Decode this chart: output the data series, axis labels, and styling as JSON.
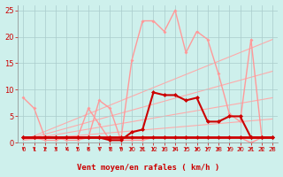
{
  "xlabel": "Vent moyen/en rafales ( km/h )",
  "xlim": [
    -0.5,
    23.5
  ],
  "ylim": [
    0,
    26
  ],
  "yticks": [
    0,
    5,
    10,
    15,
    20,
    25
  ],
  "xticks": [
    0,
    1,
    2,
    3,
    4,
    5,
    6,
    7,
    8,
    9,
    10,
    11,
    12,
    13,
    14,
    15,
    16,
    17,
    18,
    19,
    20,
    21,
    22,
    23
  ],
  "bg_color": "#cef0ec",
  "grid_color": "#aacccc",
  "x": [
    0,
    1,
    2,
    3,
    4,
    5,
    6,
    7,
    8,
    9,
    10,
    11,
    12,
    13,
    14,
    15,
    16,
    17,
    18,
    19,
    20,
    21,
    22,
    23
  ],
  "flat_line_y": [
    1,
    1,
    1,
    1,
    1,
    1,
    1,
    1,
    1,
    1,
    1,
    1,
    1,
    1,
    1,
    1,
    1,
    1,
    1,
    1,
    1,
    1,
    1,
    1
  ],
  "flat_color": "#cc0000",
  "flat_lw": 2.0,
  "flat_ms": 2.5,
  "vent_moy_y": [
    1,
    1,
    1,
    1,
    1,
    1,
    1,
    1,
    0.5,
    0.5,
    2,
    2.5,
    9.5,
    9,
    9,
    8,
    8.5,
    4,
    4,
    5,
    5,
    1,
    1,
    1
  ],
  "vent_color": "#cc0000",
  "vent_lw": 1.5,
  "vent_ms": 2.5,
  "rafales_low_y": [
    8.5,
    6.5,
    1,
    1,
    0.5,
    0.5,
    1,
    8,
    6.5,
    0.5,
    0.5,
    0.5,
    1,
    1,
    1,
    1,
    1,
    1,
    1,
    1,
    1,
    0,
    1,
    1
  ],
  "rafales_low_color": "#ff9999",
  "rafales_low_lw": 1.0,
  "rafales_low_ms": 2.0,
  "rafales_high_y": [
    1,
    1,
    0.5,
    0.5,
    1,
    1,
    6.5,
    3.5,
    0.5,
    0.5,
    15.5,
    23,
    23,
    21,
    25,
    17,
    21,
    19.5,
    13,
    5.5,
    4,
    19.5,
    1,
    1
  ],
  "rafales_high_color": "#ff9999",
  "rafales_high_lw": 1.0,
  "rafales_high_ms": 2.0,
  "trend_lines": [
    {
      "x": [
        0,
        23
      ],
      "y": [
        0.5,
        4.5
      ],
      "color": "#ffaaaa",
      "lw": 0.8
    },
    {
      "x": [
        0,
        23
      ],
      "y": [
        0.5,
        8.5
      ],
      "color": "#ffaaaa",
      "lw": 0.8
    },
    {
      "x": [
        0,
        23
      ],
      "y": [
        0.5,
        13.5
      ],
      "color": "#ffaaaa",
      "lw": 0.8
    },
    {
      "x": [
        0,
        23
      ],
      "y": [
        0.5,
        19.5
      ],
      "color": "#ffaaaa",
      "lw": 0.8
    }
  ],
  "arrow_color": "#cc0000",
  "xlabel_color": "#cc0000",
  "xlabel_fontsize": 6.5,
  "tick_color": "#cc0000",
  "tick_fontsize": 5.0
}
